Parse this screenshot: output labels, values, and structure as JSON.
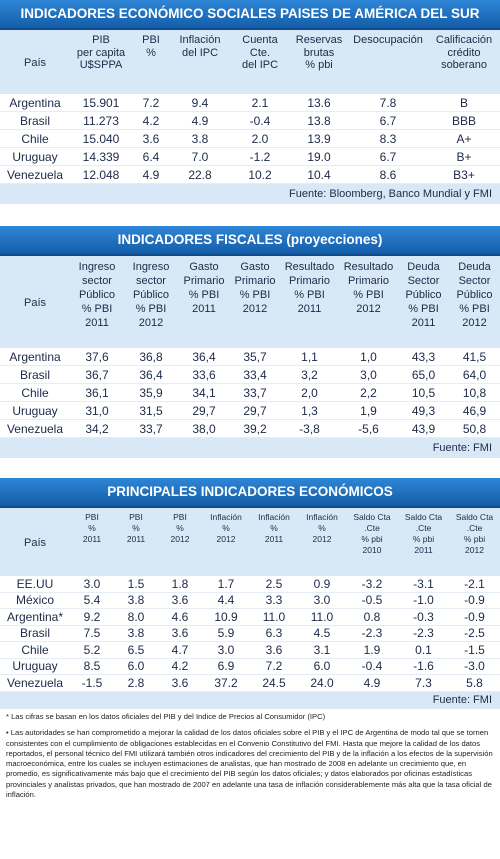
{
  "tables": [
    {
      "title": "INDICADORES ECONÓMICO SOCIALES PAISES DE AMÉRICA DEL SUR",
      "headers": [
        "País",
        "PIB\nper capita\nU$SPPA",
        "PBI\n%",
        "Inflación\ndel IPC",
        "Cuenta Cte.\ndel IPC",
        "Reservas\nbrutas\n% pbi",
        "Desocupación",
        "Calificación\ncrédito\nsoberano"
      ],
      "rows": [
        [
          "Argentina",
          "15.901",
          "7.2",
          "9.4",
          "2.1",
          "13.6",
          "7.8",
          "B"
        ],
        [
          "Brasil",
          "11.273",
          "4.2",
          "4.9",
          "-0.4",
          "13.8",
          "6.7",
          "BBB"
        ],
        [
          "Chile",
          "15.040",
          "3.6",
          "3.8",
          "2.0",
          "13.9",
          "8.3",
          "A+"
        ],
        [
          "Uruguay",
          "14.339",
          "6.4",
          "7.0",
          "-1.2",
          "19.0",
          "6.7",
          "B+"
        ],
        [
          "Venezuela",
          "12.048",
          "4.9",
          "22.8",
          "10.2",
          "10.4",
          "8.6",
          "B3+"
        ]
      ],
      "source": "Fuente: Bloomberg, Banco Mundial y FMI"
    },
    {
      "title": "INDICADORES FISCALES (proyecciones)",
      "headers": [
        "País",
        "Ingreso\nsector\nPúblico\n% PBI\n2011",
        "Ingreso\nsector\nPúblico\n% PBI\n2012",
        "Gasto\nPrimario\n% PBI\n2011",
        "Gasto\nPrimario\n% PBI\n2012",
        "Resultado\nPrimario\n% PBI\n2011",
        "Resultado\nPrimario\n% PBI\n2012",
        "Deuda\nSector\nPúblico\n% PBI\n2011",
        "Deuda\nSector\nPúblico\n% PBI\n2012"
      ],
      "rows": [
        [
          "Argentina",
          "37,6",
          "36,8",
          "36,4",
          "35,7",
          "1,1",
          "1,0",
          "43,3",
          "41,5"
        ],
        [
          "Brasil",
          "36,7",
          "36,4",
          "33,6",
          "33,4",
          "3,2",
          "3,0",
          "65,0",
          "64,0"
        ],
        [
          "Chile",
          "36,1",
          "35,9",
          "34,1",
          "33,7",
          "2,0",
          "2,2",
          "10,5",
          "10,8"
        ],
        [
          "Uruguay",
          "31,0",
          "31,5",
          "29,7",
          "29,7",
          "1,3",
          "1,9",
          "49,3",
          "46,9"
        ],
        [
          "Venezuela",
          "34,2",
          "33,7",
          "38,0",
          "39,2",
          "-3,8",
          "-5,6",
          "43,9",
          "50,8"
        ]
      ],
      "source": "Fuente: FMI"
    },
    {
      "title": "PRINCIPALES INDICADORES ECONÓMICOS",
      "headers": [
        "País",
        "PBI\n%\n2011",
        "PBI\n%\n2011",
        "PBI\n%\n2012",
        "Inflación\n%\n2012",
        "Inflación\n%\n2011",
        "Inflación\n%\n2012",
        "Saldo Cta\n.Cte\n% pbi\n2010",
        "Saldo Cta\n.Cte\n% pbi\n2011",
        "Saldo Cta\n.Cte\n% pbi\n2012"
      ],
      "rows": [
        [
          "EE.UU",
          "3.0",
          "1.5",
          "1.8",
          "1.7",
          "2.5",
          "0.9",
          "-3.2",
          "-3.1",
          "-2.1"
        ],
        [
          "México",
          "5.4",
          "3.8",
          "3.6",
          "4.4",
          "3.3",
          "3.0",
          "-0.5",
          "-1.0",
          "-0.9"
        ],
        [
          "Argentina*",
          "9.2",
          "8.0",
          "4.6",
          "10.9",
          "11.0",
          "11.0",
          "0.8",
          "-0.3",
          "-0.9"
        ],
        [
          "Brasil",
          "7.5",
          "3.8",
          "3.6",
          "5.9",
          "6.3",
          "4.5",
          "-2.3",
          "-2.3",
          "-2.5"
        ],
        [
          "Chile",
          "5.2",
          "6.5",
          "4.7",
          "3.0",
          "3.6",
          "3.1",
          "1.9",
          "0.1",
          "-1.5"
        ],
        [
          "Uruguay",
          "8.5",
          "6.0",
          "4.2",
          "6.9",
          "7.2",
          "6.0",
          "-0.4",
          "-1.6",
          "-3.0"
        ],
        [
          "Venezuela",
          "-1.5",
          "2.8",
          "3.6",
          "37.2",
          "24.5",
          "24.0",
          "4.9",
          "7.3",
          "5.8"
        ]
      ],
      "source": "Fuente: FMI"
    }
  ],
  "notes": [
    "* Las cifras se basan en los datos oficiales del PIB y del Indice de Precios al Consumidor (IPC)",
    "• Las autoridades se han comprometido a mejorar la calidad de los datos oficiales sobre el PIB y el IPC de Argentina de modo tal que se tornen consistentes con el cumplimiento de obligaciones establecidas en el Convenio Constitutivo del FMI. Hasta que mejore la calidad de los datos reportados, el personal técnico del FMI utilizará también otros indicadores del crecimiento del PIB y de la inflación a los efectos de la supervisión macroeconómica, entre los cuales se incluyen estimaciones de analistas, que han mostrado de 2008 en adelante un crecimiento que, en promedio, es significativamente más bajo que el crecimiento del PIB según los datos oficiales; y datos elaborados por oficinas estadísticas provinciales y analistas privados, que han mostrado de 2007 en adelante una tasa de inflación considerablemente más alta que la tasa oficial de inflación."
  ]
}
